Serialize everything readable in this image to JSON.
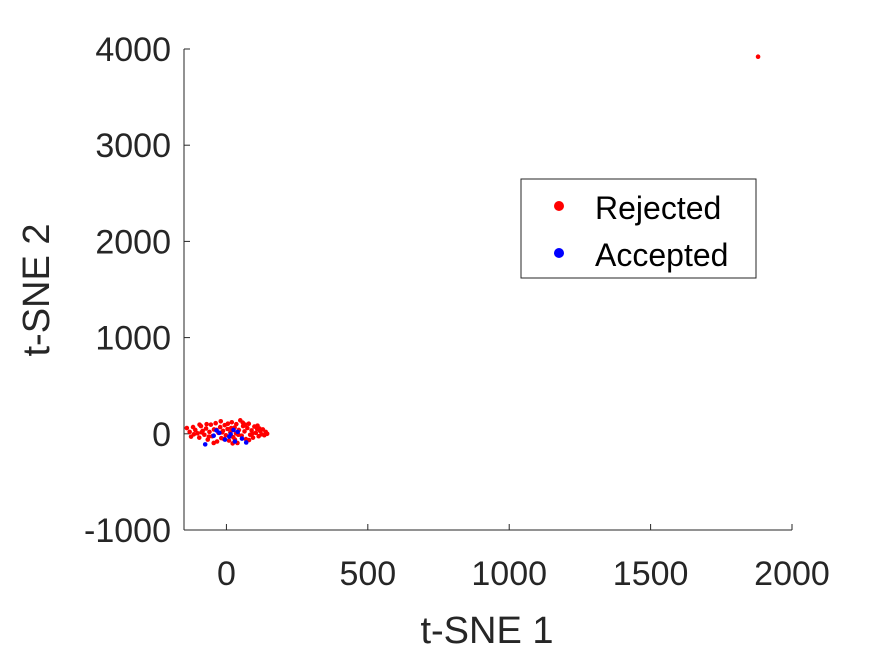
{
  "chart_data": {
    "type": "scatter",
    "xlabel": "t-SNE 1",
    "ylabel": "t-SNE 2",
    "xlim": [
      -150,
      2000
    ],
    "ylim": [
      -1000,
      4000
    ],
    "xticks": [
      0,
      500,
      1000,
      1500,
      2000
    ],
    "yticks": [
      -1000,
      0,
      1000,
      2000,
      3000,
      4000
    ],
    "xtick_labels": [
      "0",
      "500",
      "1000",
      "1500",
      "2000"
    ],
    "ytick_labels": [
      "-1000",
      "0",
      "1000",
      "2000",
      "3000",
      "4000"
    ],
    "grid": false,
    "legend_position": "upper-right",
    "series": [
      {
        "name": "Rejected",
        "color": "#ff0000",
        "points": [
          [
            1880,
            3920
          ],
          [
            -140,
            60
          ],
          [
            -130,
            20
          ],
          [
            -125,
            -30
          ],
          [
            -118,
            70
          ],
          [
            -110,
            40
          ],
          [
            -102,
            5
          ],
          [
            -96,
            -40
          ],
          [
            -90,
            80
          ],
          [
            -84,
            30
          ],
          [
            -78,
            -10
          ],
          [
            -72,
            55
          ],
          [
            -66,
            -60
          ],
          [
            -60,
            20
          ],
          [
            -55,
            95
          ],
          [
            -50,
            -25
          ],
          [
            -44,
            45
          ],
          [
            -38,
            110
          ],
          [
            -33,
            -80
          ],
          [
            -28,
            10
          ],
          [
            -22,
            70
          ],
          [
            -18,
            -45
          ],
          [
            -12,
            30
          ],
          [
            -6,
            90
          ],
          [
            -2,
            -15
          ],
          [
            4,
            50
          ],
          [
            9,
            -70
          ],
          [
            14,
            15
          ],
          [
            19,
            120
          ],
          [
            24,
            -35
          ],
          [
            29,
            65
          ],
          [
            34,
            5
          ],
          [
            39,
            -95
          ],
          [
            44,
            40
          ],
          [
            49,
            140
          ],
          [
            54,
            -20
          ],
          [
            59,
            80
          ],
          [
            64,
            25
          ],
          [
            69,
            -55
          ],
          [
            74,
            60
          ],
          [
            79,
            105
          ],
          [
            84,
            -10
          ],
          [
            89,
            35
          ],
          [
            94,
            -40
          ],
          [
            99,
            75
          ],
          [
            104,
            10
          ],
          [
            109,
            50
          ],
          [
            114,
            -25
          ],
          [
            119,
            30
          ],
          [
            124,
            -5
          ],
          [
            129,
            45
          ],
          [
            134,
            -15
          ],
          [
            139,
            20
          ],
          [
            144,
            0
          ],
          [
            -115,
            -5
          ],
          [
            -88,
            15
          ],
          [
            -62,
            -30
          ],
          [
            -35,
            40
          ],
          [
            -8,
            -55
          ],
          [
            17,
            60
          ],
          [
            42,
            -10
          ],
          [
            67,
            95
          ],
          [
            92,
            5
          ],
          [
            117,
            55
          ],
          [
            -70,
            100
          ],
          [
            -20,
            130
          ],
          [
            30,
            -60
          ],
          [
            80,
            -65
          ],
          [
            5,
            105
          ],
          [
            58,
            115
          ],
          [
            -45,
            -95
          ],
          [
            22,
            -100
          ],
          [
            -95,
            95
          ],
          [
            110,
            85
          ],
          [
            -15,
            15
          ],
          [
            35,
            100
          ]
        ]
      },
      {
        "name": "Accepted",
        "color": "#0000ff",
        "points": [
          [
            -75,
            -110
          ],
          [
            -45,
            -20
          ],
          [
            -25,
            10
          ],
          [
            -5,
            -60
          ],
          [
            10,
            -30
          ],
          [
            25,
            40
          ],
          [
            40,
            20
          ],
          [
            55,
            -50
          ],
          [
            70,
            -90
          ],
          [
            15,
            -5
          ],
          [
            -35,
            35
          ],
          [
            30,
            -80
          ]
        ]
      }
    ]
  }
}
